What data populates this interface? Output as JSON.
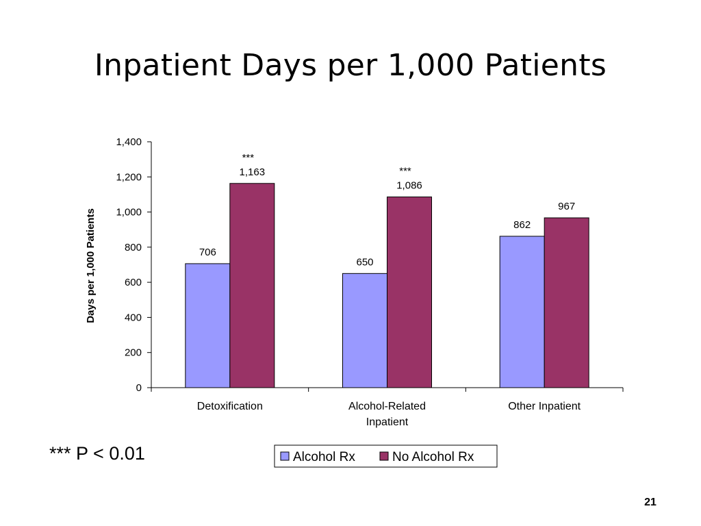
{
  "slide": {
    "title": "Inpatient Days per 1,000 Patients",
    "footnote": "*** P < 0.01",
    "page_number": "21"
  },
  "chart_data": {
    "type": "bar",
    "ylabel": "Days per 1,000 Patients",
    "xlabel": "",
    "ylim": [
      0,
      1400
    ],
    "yticks": [
      0,
      200,
      400,
      600,
      800,
      1000,
      1200,
      1400
    ],
    "ytick_labels": [
      "0",
      "200",
      "400",
      "600",
      "800",
      "1,000",
      "1,200",
      "1,400"
    ],
    "grid": false,
    "legend_position": "bottom-right",
    "categories": [
      [
        "Detoxification"
      ],
      [
        "Alcohol-Related",
        "Inpatient"
      ],
      [
        "Other Inpatient"
      ]
    ],
    "series": [
      {
        "name": "Alcohol Rx",
        "color": "#9999ff",
        "values": [
          706,
          650,
          862
        ],
        "labels": [
          "706",
          "650",
          "862"
        ]
      },
      {
        "name": "No Alcohol Rx",
        "color": "#993366",
        "values": [
          1163,
          1086,
          967
        ],
        "labels": [
          "1,163",
          "1,086",
          "967"
        ]
      }
    ],
    "annotations": [
      "***",
      "***",
      ""
    ]
  }
}
